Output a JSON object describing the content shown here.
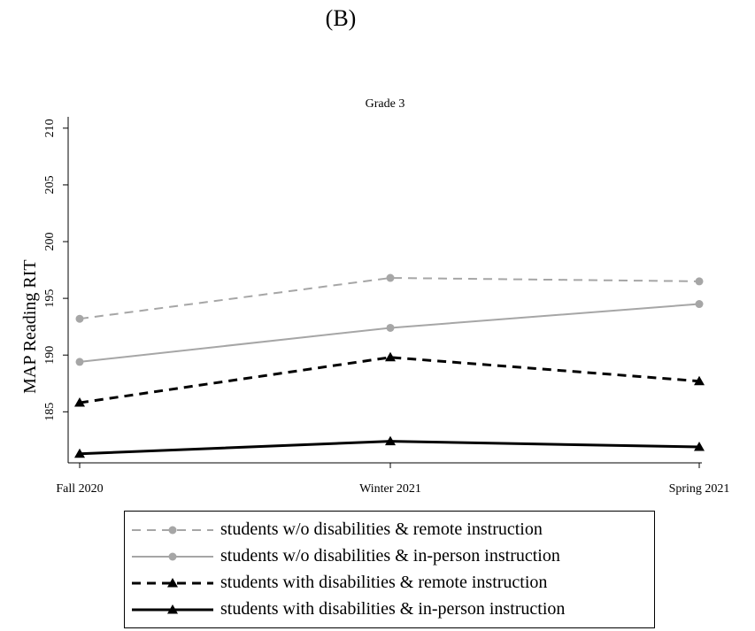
{
  "panel_label": "(B)",
  "chart_data": {
    "type": "line",
    "title": "Grade 3",
    "xlabel": "",
    "ylabel": "MAP Reading RIT",
    "categories": [
      "Fall 2020",
      "Winter 2021",
      "Spring 2021"
    ],
    "yticks": [
      185,
      190,
      195,
      200,
      205,
      210
    ],
    "ylim": [
      180.5,
      211
    ],
    "grid": false,
    "legend_placement": "bottom",
    "series": [
      {
        "name": "students w/o disabilities & remote instruction",
        "values": [
          193.2,
          196.8,
          196.5
        ],
        "color": "#a6a6a6",
        "dash": "10,7",
        "marker": "circle"
      },
      {
        "name": "students w/o disabilities & in-person instruction",
        "values": [
          189.4,
          192.4,
          194.5
        ],
        "color": "#a6a6a6",
        "dash": "",
        "marker": "circle"
      },
      {
        "name": "students with disabilities & remote instruction",
        "values": [
          185.8,
          189.8,
          187.7
        ],
        "color": "#000000",
        "dash": "10,7",
        "marker": "triangle"
      },
      {
        "name": "students with disabilities & in-person instruction",
        "values": [
          181.3,
          182.4,
          181.9
        ],
        "color": "#000000",
        "dash": "",
        "marker": "triangle"
      }
    ]
  }
}
